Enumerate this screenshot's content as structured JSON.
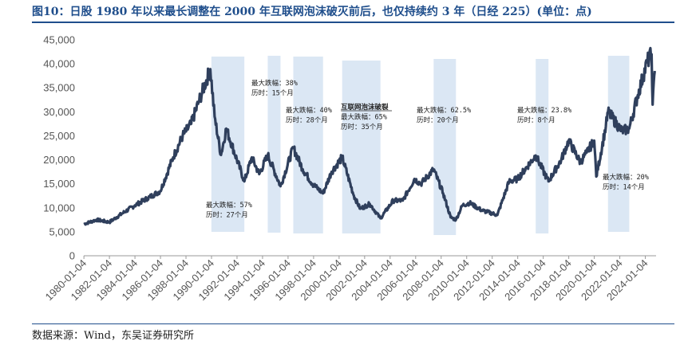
{
  "header": {
    "title": "图10：日股 1980 年以来最长调整在 2000 年互联网泡沫破灭前后，也仅持续约 3 年（日经 225）(单位：点)"
  },
  "footer": {
    "source": "数据来源：Wind，东吴证券研究所"
  },
  "colors": {
    "line": "#2f3f5c",
    "shade": "#dbe7f4",
    "title": "#1f4e8c"
  },
  "chart_data": {
    "type": "line",
    "title": "",
    "xlabel": "",
    "ylabel": "",
    "ylim": [
      0,
      45000
    ],
    "yticks": [
      "0",
      "5,000",
      "10,000",
      "15,000",
      "20,000",
      "25,000",
      "30,000",
      "35,000",
      "40,000",
      "45,000"
    ],
    "xticks": [
      "1980-01-04",
      "1982-01-04",
      "1984-01-04",
      "1986-01-04",
      "1988-01-04",
      "1990-01-04",
      "1992-01-04",
      "1994-01-04",
      "1996-01-04",
      "1998-01-04",
      "2000-01-04",
      "2002-01-04",
      "2004-01-04",
      "2006-01-04",
      "2008-01-04",
      "2010-01-04",
      "2012-01-04",
      "2014-01-04",
      "2016-01-04",
      "2018-01-04",
      "2020-01-04",
      "2022-01-04",
      "2024-01-04"
    ],
    "grid": false,
    "legend": "none",
    "series": [
      {
        "x": [
          "1980-01",
          "1981-01",
          "1982-01",
          "1983-01",
          "1984-01",
          "1985-01",
          "1986-01",
          "1987-01",
          "1987-10",
          "1988-06",
          "1989-01",
          "1989-12",
          "1990-04",
          "1990-10",
          "1991-03",
          "1992-08",
          "1993-03",
          "1993-10",
          "1994-06",
          "1995-06",
          "1996-06",
          "1997-03",
          "1997-12",
          "1998-10",
          "1999-06",
          "2000-04",
          "2001-03",
          "2001-09",
          "2002-06",
          "2003-04",
          "2004-04",
          "2005-01",
          "2005-12",
          "2006-06",
          "2007-06",
          "2008-03",
          "2008-10",
          "2009-03",
          "2009-09",
          "2010-04",
          "2011-03",
          "2012-06",
          "2013-05",
          "2014-01",
          "2015-06",
          "2016-06",
          "2017-06",
          "2018-01",
          "2018-12",
          "2019-06",
          "2020-01",
          "2020-03",
          "2020-12",
          "2021-02",
          "2022-03",
          "2022-10",
          "2023-06",
          "2024-03",
          "2024-07",
          "2024-08",
          "2024-10"
        ],
        "y": [
          6600,
          7500,
          7000,
          8800,
          10500,
          12000,
          13500,
          20500,
          25000,
          27500,
          32000,
          38900,
          29000,
          21000,
          26500,
          15500,
          20500,
          17000,
          21000,
          14500,
          22500,
          18000,
          15000,
          13000,
          17500,
          20500,
          12500,
          9800,
          10800,
          7800,
          11500,
          11500,
          16000,
          15000,
          18000,
          13000,
          8000,
          7500,
          10500,
          11000,
          9500,
          8500,
          15500,
          16000,
          20900,
          15500,
          20000,
          24000,
          19500,
          21500,
          24000,
          16500,
          27000,
          30000,
          26000,
          26500,
          33500,
          40500,
          42000,
          31500,
          38500
        ]
      }
    ],
    "shaded_periods": [
      {
        "start": "1990-01",
        "end": "1992-08"
      },
      {
        "start": "1994-06",
        "end": "1995-06"
      },
      {
        "start": "1996-06",
        "end": "1998-10"
      },
      {
        "start": "2000-04",
        "end": "2003-04"
      },
      {
        "start": "2007-06",
        "end": "2009-03"
      },
      {
        "start": "2015-06",
        "end": "2016-06"
      },
      {
        "start": "2021-02",
        "end": "2022-10"
      }
    ],
    "annotations": [
      {
        "lines": [
          "最大跌幅：57%",
          "历时：27个月"
        ]
      },
      {
        "lines": [
          "最大跌幅：38%",
          "历时：15个月"
        ]
      },
      {
        "lines": [
          "最大跌幅：40%",
          "历时：28个月"
        ]
      },
      {
        "lines": [
          "互联网泡沫破裂",
          "最大跌幅：65%",
          "历时：35个月"
        ]
      },
      {
        "lines": [
          "最大跌幅：62.5%",
          "历时：20个月"
        ]
      },
      {
        "lines": [
          "最大跌幅：23.8%",
          "历时：8个月"
        ]
      },
      {
        "lines": [
          "最大跌幅：20%",
          "历时：14个月"
        ]
      }
    ]
  }
}
